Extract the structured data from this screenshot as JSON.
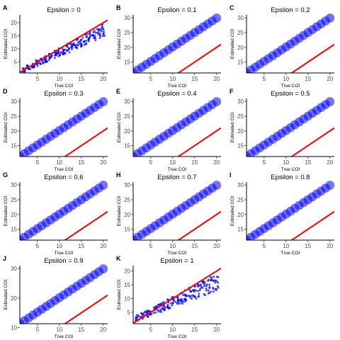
{
  "chart_data": {
    "type": "scatter",
    "layout": "small-multiples-grid-3-columns",
    "xlabel": "True COI",
    "ylabel": "Estimated COI",
    "xlim": [
      1,
      21
    ],
    "x_ticks": [
      5,
      10,
      15,
      20
    ],
    "reference_line": {
      "description": "y = x",
      "slope": 1,
      "intercept": 0,
      "color": "#ff0000"
    },
    "point_color": "#0000ff",
    "grid": false,
    "panels": [
      {
        "tag": "A",
        "title": "Epsilon = 0",
        "pattern": "scatter",
        "ylim": [
          0.8,
          23
        ],
        "y_ticks": [
          5,
          10,
          15,
          20
        ],
        "x": [
          2,
          20
        ],
        "y_mean": [
          2,
          17
        ],
        "y_spread": [
          0.8,
          2.5
        ]
      },
      {
        "tag": "B",
        "title": "Epsilon = 0.1",
        "pattern": "offset",
        "ylim": [
          11.3,
          31
        ],
        "y_ticks": [
          15,
          20,
          25,
          30
        ],
        "x": [
          1,
          20
        ],
        "y": [
          11.3,
          29.9
        ]
      },
      {
        "tag": "C",
        "title": "Epsilon = 0.2",
        "pattern": "offset",
        "ylim": [
          11.3,
          31
        ],
        "y_ticks": [
          15,
          20,
          25,
          30
        ],
        "x": [
          1,
          20
        ],
        "y": [
          11.3,
          29.9
        ]
      },
      {
        "tag": "D",
        "title": "Epsilon = 0.3",
        "pattern": "offset",
        "ylim": [
          11.3,
          31
        ],
        "y_ticks": [
          15,
          20,
          25,
          30
        ],
        "x": [
          1,
          20
        ],
        "y": [
          11.3,
          29.9
        ]
      },
      {
        "tag": "E",
        "title": "Epsilon = 0.4",
        "pattern": "offset",
        "ylim": [
          11.3,
          31
        ],
        "y_ticks": [
          15,
          20,
          25,
          30
        ],
        "x": [
          1,
          20
        ],
        "y": [
          11.3,
          29.9
        ]
      },
      {
        "tag": "F",
        "title": "Epsilon = 0.5",
        "pattern": "offset",
        "ylim": [
          11.3,
          31
        ],
        "y_ticks": [
          15,
          20,
          25,
          30
        ],
        "x": [
          1,
          20
        ],
        "y": [
          11.3,
          29.9
        ]
      },
      {
        "tag": "G",
        "title": "Epsilon = 0.6",
        "pattern": "offset",
        "ylim": [
          11.3,
          31
        ],
        "y_ticks": [
          15,
          20,
          25,
          30
        ],
        "x": [
          1,
          20
        ],
        "y": [
          11.3,
          29.9
        ]
      },
      {
        "tag": "H",
        "title": "Epsilon = 0.7",
        "pattern": "offset",
        "ylim": [
          11.3,
          31
        ],
        "y_ticks": [
          15,
          20,
          25,
          30
        ],
        "x": [
          1,
          20
        ],
        "y": [
          11.3,
          29.9
        ]
      },
      {
        "tag": "I",
        "title": "Epsilon = 0.8",
        "pattern": "offset",
        "ylim": [
          11.3,
          31
        ],
        "y_ticks": [
          15,
          20,
          25,
          30
        ],
        "x": [
          1,
          20
        ],
        "y": [
          11.3,
          29.9
        ]
      },
      {
        "tag": "J",
        "title": "Epsilon = 0.9",
        "pattern": "offset",
        "ylim": [
          11.3,
          31
        ],
        "y_ticks": [
          10,
          20,
          30
        ],
        "x": [
          1,
          20
        ],
        "y": [
          11.3,
          29.9
        ]
      },
      {
        "tag": "K",
        "title": "Epsilon = 1",
        "pattern": "scatter",
        "ylim": [
          0.8,
          22
        ],
        "y_ticks": [
          5,
          10,
          15,
          20
        ],
        "x": [
          2,
          20
        ],
        "y_mean": [
          3,
          16
        ],
        "y_spread": [
          1,
          3
        ]
      }
    ]
  }
}
